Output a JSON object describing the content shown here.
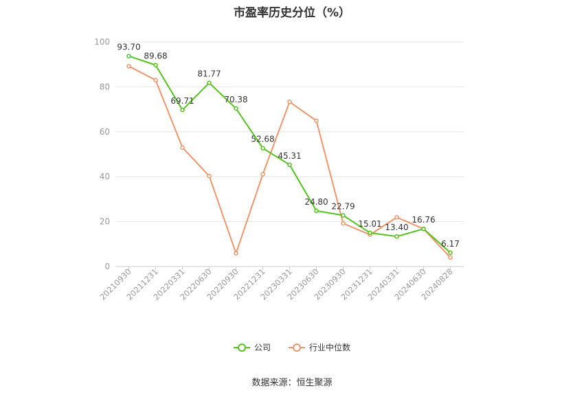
{
  "chart_data": {
    "type": "line",
    "title": "市盈率历史分位（%）",
    "categories": [
      "20210930",
      "20211231",
      "20220331",
      "20220630",
      "20220930",
      "20221231",
      "20230331",
      "20230630",
      "20230930",
      "20231231",
      "20240331",
      "20240630",
      "20240828"
    ],
    "ylim": [
      0,
      100
    ],
    "yticks": [
      0,
      20,
      40,
      60,
      80,
      100
    ],
    "grid": true,
    "legend_position": "bottom",
    "series": [
      {
        "name": "公司",
        "color": "#52c41a",
        "values": [
          93.7,
          89.68,
          69.71,
          81.77,
          70.38,
          52.68,
          45.31,
          24.8,
          22.79,
          15.01,
          13.4,
          16.76,
          6.17
        ],
        "labels": [
          "93.70",
          "89.68",
          "69.71",
          "81.77",
          "70.38",
          "52.68",
          "45.31",
          "24.80",
          "22.79",
          "15.01",
          "13.40",
          "16.76",
          "6.17"
        ]
      },
      {
        "name": "行业中位数",
        "color": "#f0956b",
        "values": [
          89.2,
          83.0,
          53.0,
          40.3,
          5.9,
          41.1,
          73.3,
          64.9,
          19.2,
          14.2,
          21.9,
          16.8,
          4.0
        ]
      }
    ]
  },
  "source": "数据来源：恒生聚源"
}
